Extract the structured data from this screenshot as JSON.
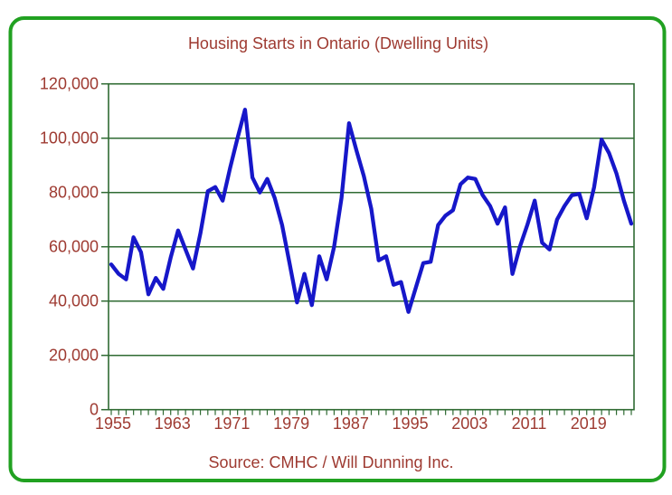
{
  "page": {
    "background_color": "#ffffff"
  },
  "frame": {
    "border_color": "#21A121"
  },
  "chart_data": {
    "type": "line",
    "title": "Housing Starts in Ontario (Dwelling Units)",
    "source_note": "Source: CMHC / Will Dunning Inc.",
    "text_color": "#9E3A31",
    "grid": {
      "color": "#2F6B33",
      "horizontal": true,
      "vertical": false
    },
    "legend": "none",
    "x_axis": {
      "min": 1955,
      "max": 2025,
      "minor_tick_every": 1,
      "labeled_years": [
        1955,
        1963,
        1971,
        1979,
        1987,
        1995,
        2003,
        2011,
        2019
      ]
    },
    "y_axis": {
      "min": 0,
      "max": 120000,
      "tick_step": 20000,
      "ticks": [
        {
          "value": 120000,
          "label": "120,000"
        },
        {
          "value": 100000,
          "label": "100,000"
        },
        {
          "value": 80000,
          "label": "80,000"
        },
        {
          "value": 60000,
          "label": "60,000"
        },
        {
          "value": 40000,
          "label": "40,000"
        },
        {
          "value": 20000,
          "label": "20,000"
        },
        {
          "value": 0,
          "label": "0"
        }
      ]
    },
    "series": [
      {
        "name": "Housing Starts (Dwelling Units)",
        "color": "#1617C9",
        "x": [
          1955,
          1956,
          1957,
          1958,
          1959,
          1960,
          1961,
          1962,
          1963,
          1964,
          1965,
          1966,
          1967,
          1968,
          1969,
          1970,
          1971,
          1972,
          1973,
          1974,
          1975,
          1976,
          1977,
          1978,
          1979,
          1980,
          1981,
          1982,
          1983,
          1984,
          1985,
          1986,
          1987,
          1988,
          1989,
          1990,
          1991,
          1992,
          1993,
          1994,
          1995,
          1996,
          1997,
          1998,
          1999,
          2000,
          2001,
          2002,
          2003,
          2004,
          2005,
          2006,
          2007,
          2008,
          2009,
          2010,
          2011,
          2012,
          2013,
          2014,
          2015,
          2016,
          2017,
          2018,
          2019,
          2020,
          2021,
          2022,
          2023,
          2024,
          2025
        ],
        "values": [
          53500,
          50000,
          48000,
          63500,
          58000,
          42500,
          48500,
          44500,
          56000,
          66000,
          59000,
          52000,
          65000,
          80500,
          82000,
          77000,
          89000,
          100000,
          110500,
          85500,
          80000,
          85000,
          78000,
          68000,
          54000,
          39500,
          50000,
          38500,
          56500,
          48000,
          60000,
          78000,
          105500,
          95500,
          86000,
          74000,
          55000,
          56500,
          46000,
          47000,
          36000,
          45000,
          54000,
          54500,
          68000,
          71500,
          73500,
          83000,
          85500,
          85000,
          79000,
          75000,
          68500,
          74500,
          50000,
          60000,
          68000,
          77000,
          61500,
          59000,
          70000,
          75000,
          79000,
          79500,
          70500,
          82000,
          99500,
          94500,
          87000,
          77000,
          68500
        ]
      }
    ]
  }
}
